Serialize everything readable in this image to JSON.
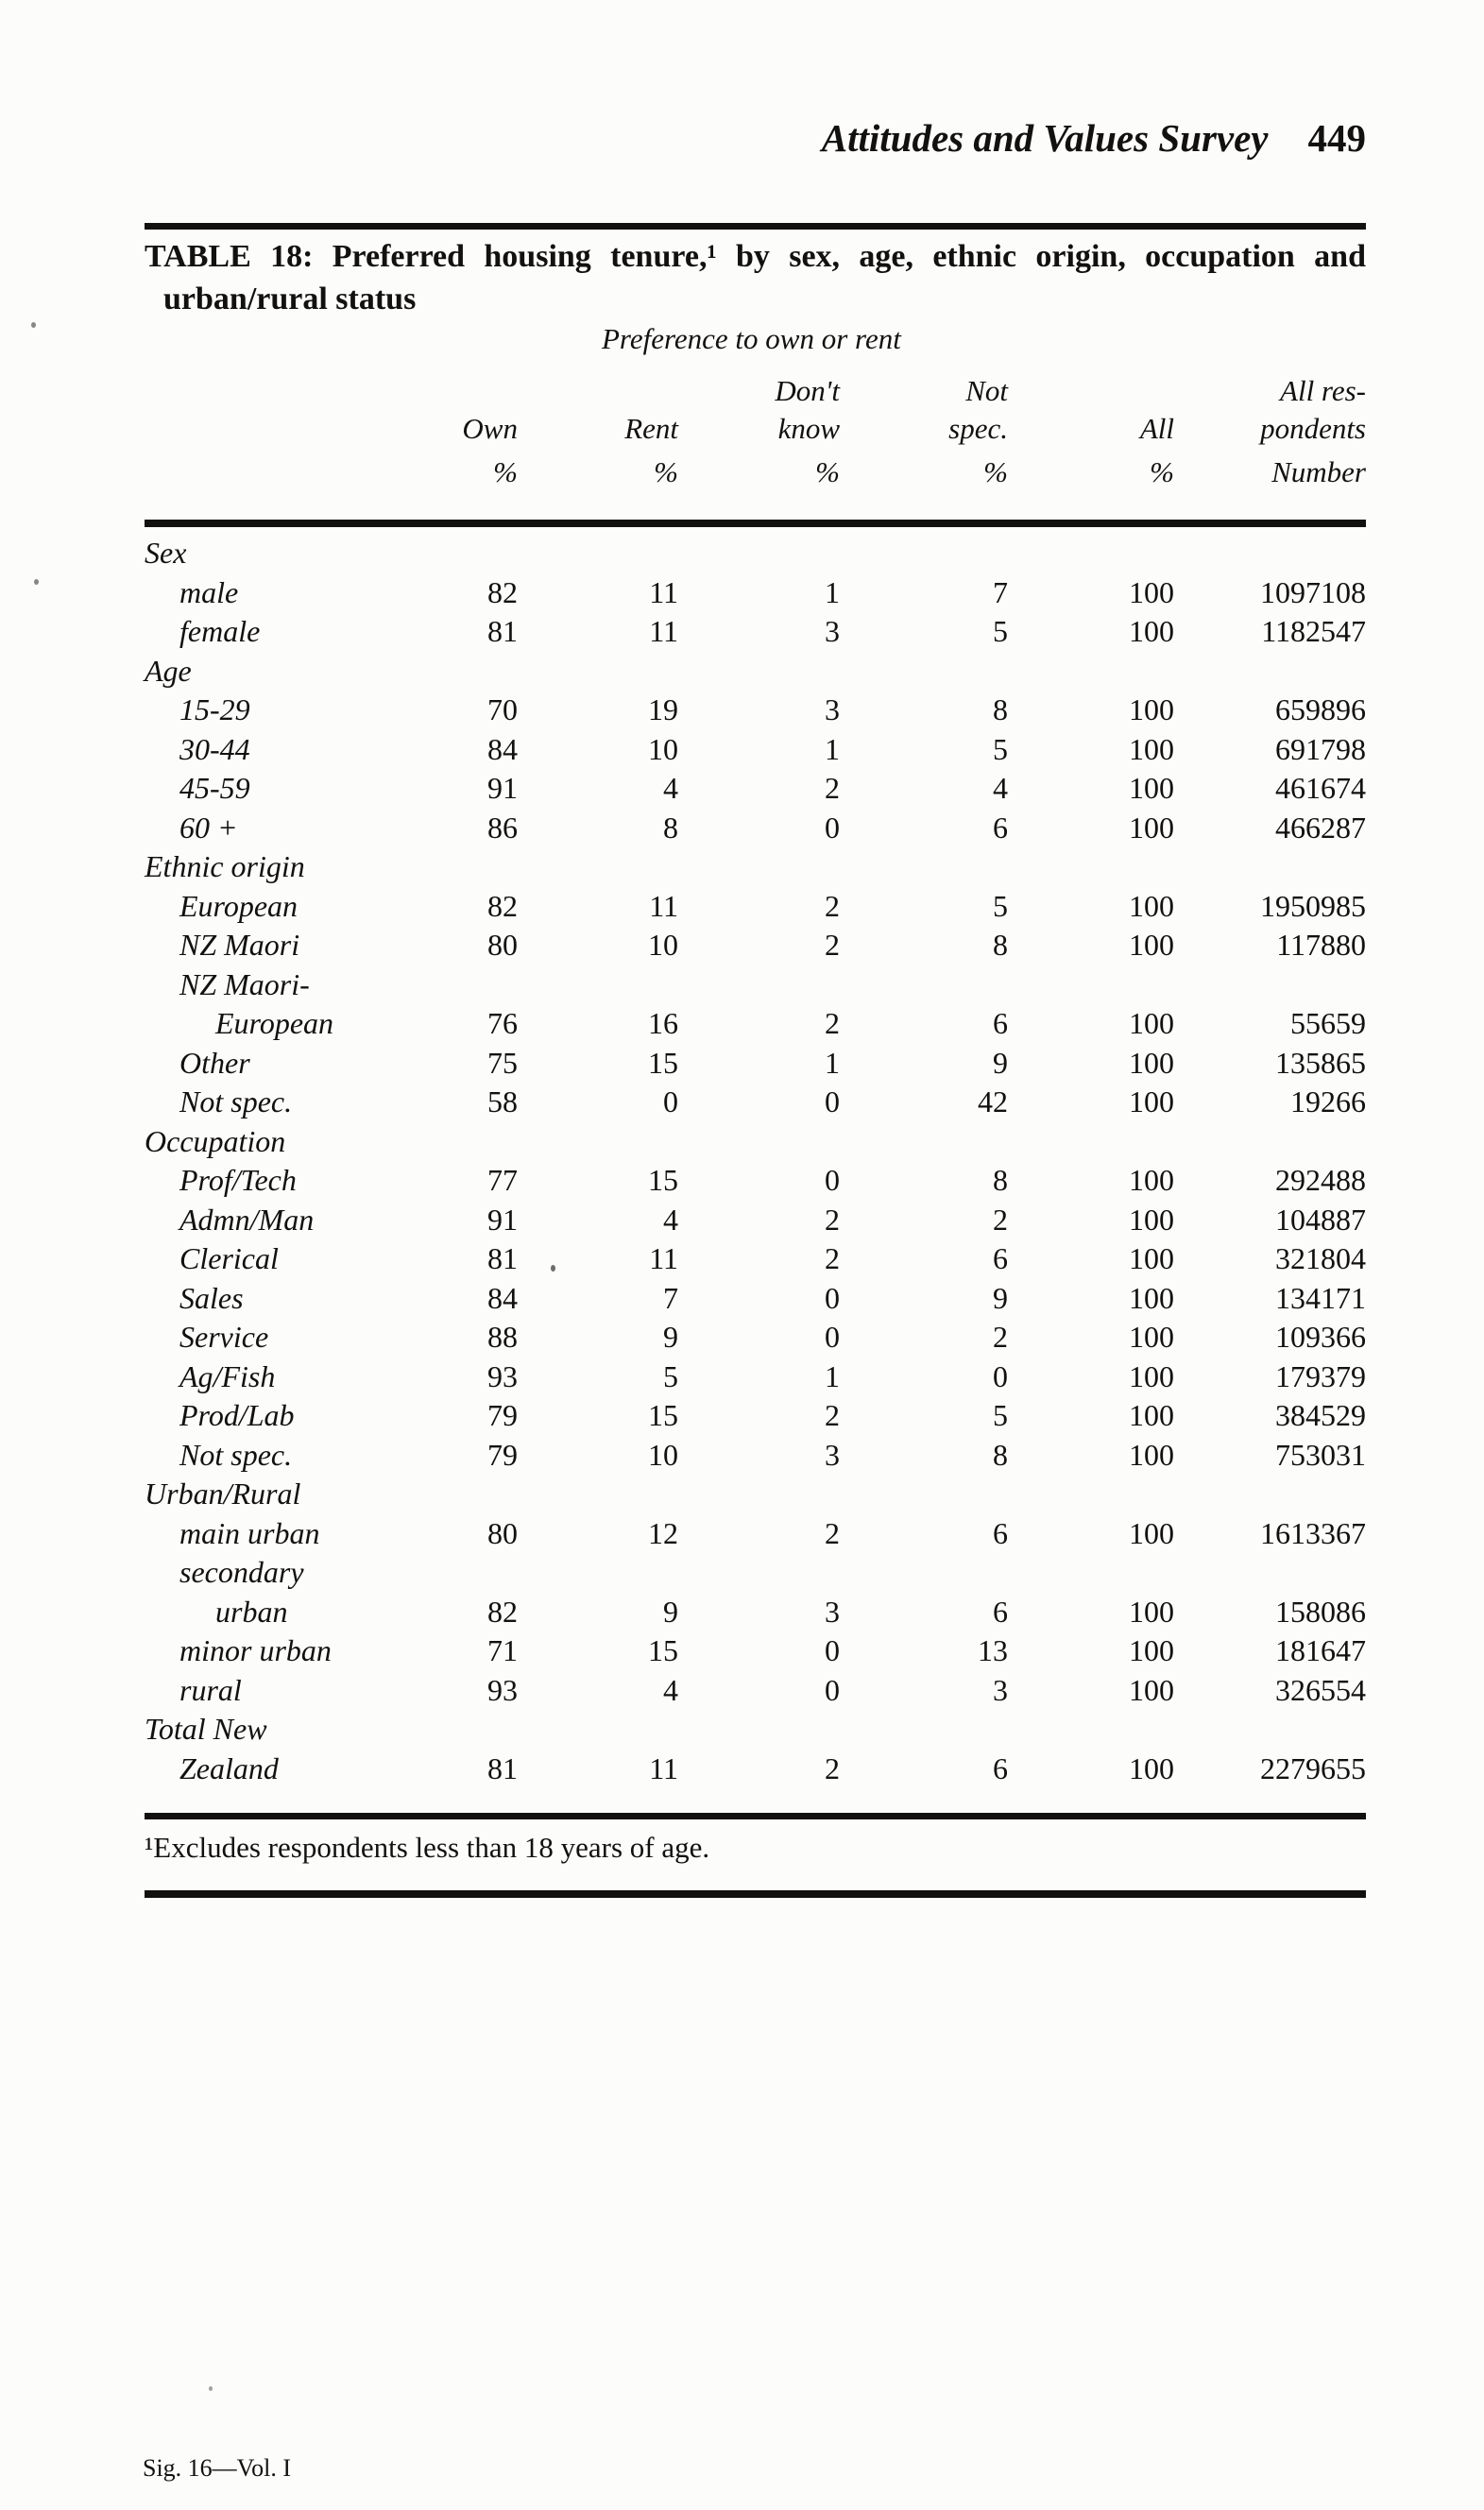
{
  "page": {
    "running_head": "Attitudes and Values Survey",
    "page_number": "449",
    "footnote": "¹Excludes respondents less than 18 years of age.",
    "signature": "Sig. 16—Vol. I"
  },
  "table": {
    "caption_line1": "TABLE 18: Preferred housing tenure,¹ by sex, age, ethnic origin, occupation and",
    "caption_line2": "urban/rural status",
    "spanner": "Preference to own or rent",
    "header": {
      "row1": [
        "",
        "",
        "Don't",
        "Not",
        "",
        "All res-"
      ],
      "row2": [
        "Own",
        "Rent",
        "know",
        "spec.",
        "All",
        "pondents"
      ],
      "row3": [
        "%",
        "%",
        "%",
        "%",
        "%",
        "Number"
      ]
    },
    "rows": [
      {
        "label": "Sex",
        "indent": 0,
        "values": null
      },
      {
        "label": "male",
        "indent": 1,
        "values": [
          "82",
          "11",
          "1",
          "7",
          "100",
          "1097108"
        ]
      },
      {
        "label": "female",
        "indent": 1,
        "values": [
          "81",
          "11",
          "3",
          "5",
          "100",
          "1182547"
        ]
      },
      {
        "label": "Age",
        "indent": 0,
        "values": null
      },
      {
        "label": "15-29",
        "indent": 1,
        "values": [
          "70",
          "19",
          "3",
          "8",
          "100",
          "659896"
        ]
      },
      {
        "label": "30-44",
        "indent": 1,
        "values": [
          "84",
          "10",
          "1",
          "5",
          "100",
          "691798"
        ]
      },
      {
        "label": "45-59",
        "indent": 1,
        "values": [
          "91",
          "4",
          "2",
          "4",
          "100",
          "461674"
        ]
      },
      {
        "label": "60 +",
        "indent": 1,
        "values": [
          "86",
          "8",
          "0",
          "6",
          "100",
          "466287"
        ]
      },
      {
        "label": "Ethnic origin",
        "indent": 0,
        "values": null
      },
      {
        "label": "European",
        "indent": 1,
        "values": [
          "82",
          "11",
          "2",
          "5",
          "100",
          "1950985"
        ]
      },
      {
        "label": "NZ Maori",
        "indent": 1,
        "values": [
          "80",
          "10",
          "2",
          "8",
          "100",
          "117880"
        ]
      },
      {
        "label": "NZ Maori-",
        "indent": 1,
        "values": null
      },
      {
        "label": "European",
        "indent": 2,
        "values": [
          "76",
          "16",
          "2",
          "6",
          "100",
          "55659"
        ]
      },
      {
        "label": "Other",
        "indent": 1,
        "values": [
          "75",
          "15",
          "1",
          "9",
          "100",
          "135865"
        ]
      },
      {
        "label": "Not spec.",
        "indent": 1,
        "values": [
          "58",
          "0",
          "0",
          "42",
          "100",
          "19266"
        ]
      },
      {
        "label": "Occupation",
        "indent": 0,
        "values": null
      },
      {
        "label": "Prof/Tech",
        "indent": 1,
        "values": [
          "77",
          "15",
          "0",
          "8",
          "100",
          "292488"
        ]
      },
      {
        "label": "Admn/Man",
        "indent": 1,
        "values": [
          "91",
          "4",
          "2",
          "2",
          "100",
          "104887"
        ]
      },
      {
        "label": "Clerical",
        "indent": 1,
        "values": [
          "81",
          "11",
          "2",
          "6",
          "100",
          "321804"
        ]
      },
      {
        "label": "Sales",
        "indent": 1,
        "values": [
          "84",
          "7",
          "0",
          "9",
          "100",
          "134171"
        ]
      },
      {
        "label": "Service",
        "indent": 1,
        "values": [
          "88",
          "9",
          "0",
          "2",
          "100",
          "109366"
        ]
      },
      {
        "label": "Ag/Fish",
        "indent": 1,
        "values": [
          "93",
          "5",
          "1",
          "0",
          "100",
          "179379"
        ]
      },
      {
        "label": "Prod/Lab",
        "indent": 1,
        "values": [
          "79",
          "15",
          "2",
          "5",
          "100",
          "384529"
        ]
      },
      {
        "label": "Not spec.",
        "indent": 1,
        "values": [
          "79",
          "10",
          "3",
          "8",
          "100",
          "753031"
        ]
      },
      {
        "label": "Urban/Rural",
        "indent": 0,
        "values": null
      },
      {
        "label": "main urban",
        "indent": 1,
        "values": [
          "80",
          "12",
          "2",
          "6",
          "100",
          "1613367"
        ]
      },
      {
        "label": "secondary",
        "indent": 1,
        "values": null
      },
      {
        "label": "urban",
        "indent": 2,
        "values": [
          "82",
          "9",
          "3",
          "6",
          "100",
          "158086"
        ]
      },
      {
        "label": "minor urban",
        "indent": 1,
        "values": [
          "71",
          "15",
          "0",
          "13",
          "100",
          "181647"
        ]
      },
      {
        "label": "rural",
        "indent": 1,
        "values": [
          "93",
          "4",
          "0",
          "3",
          "100",
          "326554"
        ]
      },
      {
        "label": "Total New",
        "indent": 0,
        "values": null
      },
      {
        "label": "Zealand",
        "indent": 1,
        "values": [
          "81",
          "11",
          "2",
          "6",
          "100",
          "2279655"
        ]
      }
    ]
  }
}
